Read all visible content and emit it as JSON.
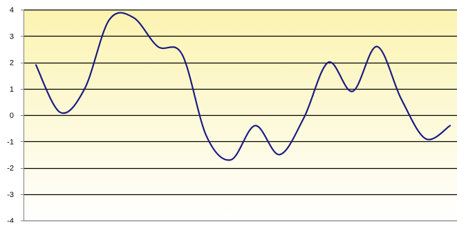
{
  "chart_data": {
    "type": "line",
    "title": "",
    "xlabel": "",
    "ylabel": "",
    "ylim": [
      -4,
      4
    ],
    "yticks": [
      4,
      3,
      2,
      1,
      0,
      -1,
      -2,
      -3,
      -4
    ],
    "ytick_labels": [
      "4",
      "3",
      "2",
      "1",
      "0",
      "-1",
      "-2",
      "-3",
      "-4"
    ],
    "grid": true,
    "legend": "none",
    "x": [
      1,
      2,
      3,
      4,
      5,
      6,
      7,
      8,
      9,
      10,
      11,
      12,
      13,
      14,
      15,
      16,
      17,
      18
    ],
    "series": [
      {
        "color": "#1a1a80",
        "values": [
          1.9,
          0.1,
          1.0,
          3.6,
          3.7,
          2.6,
          2.3,
          -0.8,
          -1.7,
          -0.4,
          -1.5,
          -0.1,
          2.0,
          0.9,
          2.6,
          0.6,
          -0.9,
          -0.4
        ]
      }
    ],
    "colors": {
      "plot_gradient_top": "#fbf3b0",
      "plot_gradient_bottom": "#ffffff",
      "grid": "#000000",
      "axis": "#808080"
    }
  }
}
